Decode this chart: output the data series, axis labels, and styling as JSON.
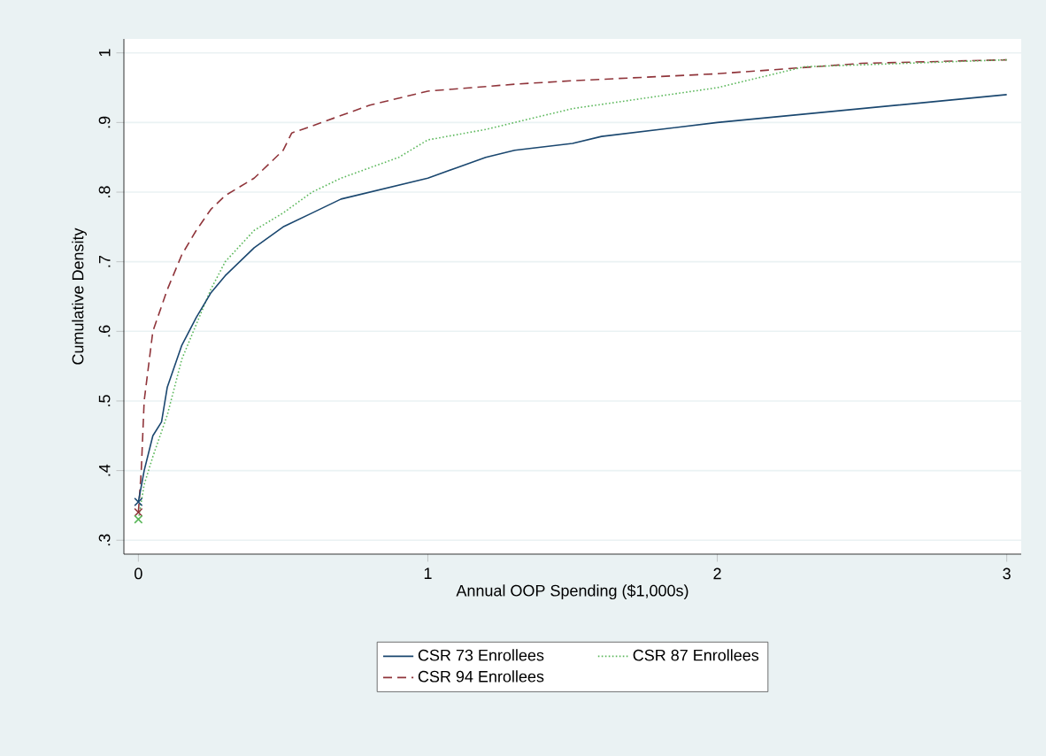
{
  "chart_data": {
    "type": "line",
    "xlabel": "Annual OOP Spending ($1,000s)",
    "ylabel": "Cumulative Density",
    "xlim": [
      -0.05,
      3.05
    ],
    "ylim": [
      0.28,
      1.02
    ],
    "xticks": [
      0,
      1,
      2,
      3
    ],
    "yticks": [
      {
        "value": 0.3,
        "label": ".3"
      },
      {
        "value": 0.4,
        "label": ".4"
      },
      {
        "value": 0.5,
        "label": ".5"
      },
      {
        "value": 0.6,
        "label": ".6"
      },
      {
        "value": 0.7,
        "label": ".7"
      },
      {
        "value": 0.8,
        "label": ".8"
      },
      {
        "value": 0.9,
        "label": ".9"
      },
      {
        "value": 1,
        "label": "1"
      }
    ],
    "grid": "y",
    "legend": "bottom",
    "series": [
      {
        "name": "CSR 73 Enrollees",
        "color": "#1a476f",
        "line_style": "solid",
        "x": [
          0,
          0.02,
          0.05,
          0.08,
          0.1,
          0.15,
          0.2,
          0.25,
          0.3,
          0.4,
          0.5,
          0.6,
          0.7,
          0.8,
          0.9,
          1.0,
          1.1,
          1.2,
          1.3,
          1.5,
          1.6,
          2.0,
          2.5,
          3.0
        ],
        "values": [
          0.355,
          0.4,
          0.45,
          0.47,
          0.52,
          0.58,
          0.62,
          0.655,
          0.68,
          0.72,
          0.75,
          0.77,
          0.79,
          0.8,
          0.81,
          0.82,
          0.835,
          0.85,
          0.86,
          0.87,
          0.88,
          0.9,
          0.92,
          0.94
        ]
      },
      {
        "name": "CSR 87 Enrollees",
        "color": "#5cb85c",
        "line_style": "dotted",
        "x": [
          0,
          0.02,
          0.05,
          0.1,
          0.15,
          0.2,
          0.25,
          0.3,
          0.4,
          0.5,
          0.6,
          0.7,
          0.8,
          0.9,
          1.0,
          1.2,
          1.5,
          2.0,
          2.3,
          3.0
        ],
        "values": [
          0.33,
          0.38,
          0.42,
          0.48,
          0.56,
          0.61,
          0.66,
          0.7,
          0.745,
          0.77,
          0.8,
          0.82,
          0.835,
          0.85,
          0.875,
          0.89,
          0.92,
          0.95,
          0.98,
          0.99
        ]
      },
      {
        "name": "CSR 94 Enrollees",
        "color": "#90353b",
        "line_style": "dashed",
        "x": [
          0,
          0.01,
          0.02,
          0.05,
          0.1,
          0.15,
          0.2,
          0.25,
          0.3,
          0.4,
          0.5,
          0.53,
          0.6,
          0.8,
          1.0,
          1.3,
          1.5,
          2.0,
          2.5,
          3.0
        ],
        "values": [
          0.34,
          0.4,
          0.5,
          0.6,
          0.66,
          0.71,
          0.745,
          0.775,
          0.795,
          0.82,
          0.86,
          0.885,
          0.895,
          0.925,
          0.945,
          0.955,
          0.96,
          0.97,
          0.985,
          0.99
        ]
      },
      {
        "type": "scatter",
        "marker": "cross",
        "color": "#1a476f",
        "x": [
          0
        ],
        "values": [
          0.355
        ]
      },
      {
        "type": "scatter",
        "marker": "cross",
        "color": "#5cb85c",
        "x": [
          0
        ],
        "values": [
          0.33
        ]
      },
      {
        "type": "scatter",
        "marker": "cross",
        "color": "#90353b",
        "x": [
          0
        ],
        "values": [
          0.34
        ]
      }
    ]
  }
}
